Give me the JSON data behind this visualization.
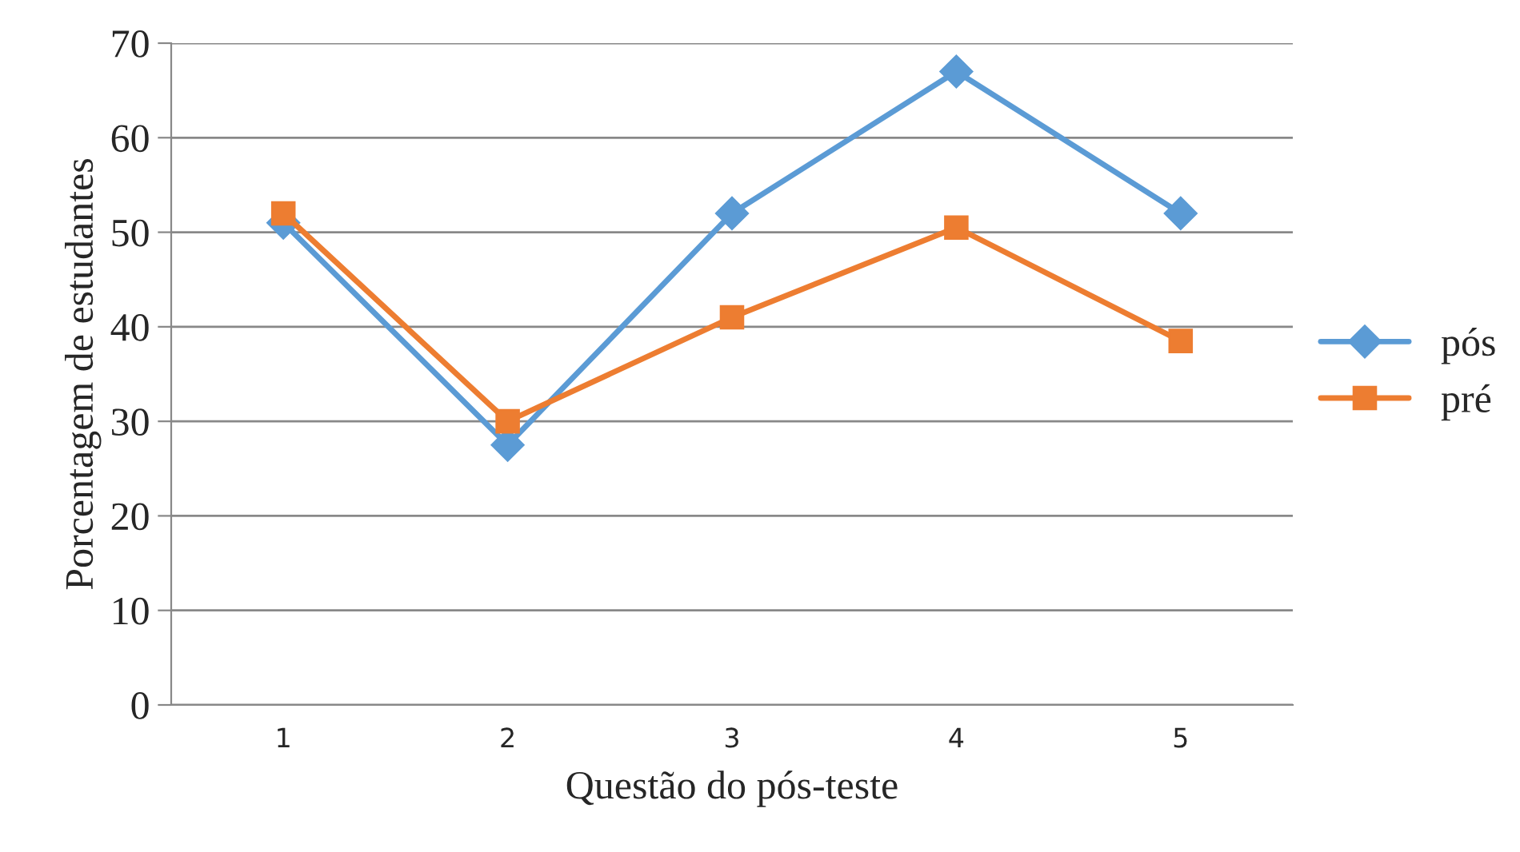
{
  "chart_data": {
    "type": "line",
    "xlabel": "Questão do pós-teste",
    "ylabel": "Porcentagem de estudantes",
    "categories": [
      "1",
      "2",
      "3",
      "4",
      "5"
    ],
    "series": [
      {
        "name": "pós",
        "color": "#5b9bd5",
        "marker": "diamond",
        "values": [
          51,
          27.5,
          52,
          67,
          52
        ]
      },
      {
        "name": "pré",
        "color": "#ed7d31",
        "marker": "square",
        "values": [
          52,
          30,
          41,
          50.5,
          38.5
        ]
      }
    ],
    "ylim": [
      0,
      70
    ],
    "yticks": [
      0,
      10,
      20,
      30,
      40,
      50,
      60,
      70
    ],
    "grid": "y",
    "legend": "right",
    "line_style": "solid"
  }
}
